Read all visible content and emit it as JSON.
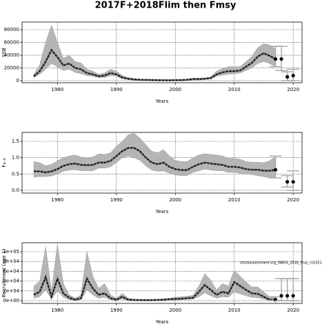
{
  "title": "2017F+2018Flim then Fmsy",
  "chart_data": [
    {
      "type": "line",
      "ylabel": "SSB",
      "xlabel": "Years",
      "x": [
        1976,
        1977,
        1978,
        1979,
        1980,
        1981,
        1982,
        1983,
        1984,
        1985,
        1986,
        1987,
        1988,
        1989,
        1990,
        1991,
        1992,
        1993,
        1994,
        1995,
        1996,
        1997,
        1998,
        1999,
        2000,
        2001,
        2002,
        2003,
        2004,
        2005,
        2006,
        2007,
        2008,
        2009,
        2010,
        2011,
        2012,
        2013,
        2014,
        2015,
        2016,
        2017
      ],
      "series": [
        {
          "color": "#000000",
          "values": [
            7000,
            15000,
            30000,
            48000,
            37000,
            24000,
            27000,
            20000,
            18000,
            12000,
            10000,
            7000,
            8000,
            12000,
            10000,
            5000,
            3000,
            2000,
            1500,
            1200,
            1000,
            800,
            700,
            700,
            800,
            900,
            1500,
            2500,
            2500,
            3000,
            4000,
            10000,
            13000,
            15000,
            15000,
            16000,
            22000,
            28000,
            38000,
            43000,
            39000,
            34000
          ],
          "upper": [
            10000,
            25000,
            60000,
            87000,
            60000,
            35000,
            40000,
            30000,
            28000,
            18000,
            15000,
            10000,
            12000,
            18000,
            15000,
            8000,
            5000,
            3500,
            2500,
            2000,
            1800,
            1500,
            1300,
            1300,
            1400,
            1600,
            2500,
            4000,
            4000,
            4500,
            6000,
            15000,
            19000,
            22000,
            22000,
            22000,
            30000,
            38000,
            52000,
            58000,
            56000,
            50000
          ],
          "lower": [
            5000,
            10000,
            18000,
            27000,
            22000,
            16000,
            18000,
            13000,
            11000,
            8000,
            7000,
            5000,
            5000,
            8000,
            7000,
            3000,
            1800,
            1200,
            900,
            700,
            600,
            500,
            400,
            400,
            500,
            600,
            1000,
            1500,
            1500,
            2000,
            2500,
            7000,
            9000,
            10000,
            11000,
            12000,
            16000,
            20000,
            27000,
            30000,
            27000,
            22000
          ]
        }
      ],
      "forecast": {
        "x": [
          2017,
          2018,
          2019,
          2020
        ],
        "values": [
          34000,
          34000,
          6000,
          8000
        ],
        "lower": [
          22000,
          16000,
          0,
          0
        ],
        "upper": [
          54000,
          54000,
          14000,
          18000
        ]
      },
      "xlim": [
        1974,
        2021.5
      ],
      "xticks": [
        1980,
        1990,
        2000,
        2010,
        2020
      ],
      "ylim": [
        -3200,
        91900
      ],
      "yticks": [
        0,
        20000,
        40000,
        60000,
        80000
      ],
      "grid": true
    },
    {
      "type": "line",
      "ylabel": "F₄₋₈",
      "xlabel": "Years",
      "x": [
        1976,
        1977,
        1978,
        1979,
        1980,
        1981,
        1982,
        1983,
        1984,
        1985,
        1986,
        1987,
        1988,
        1989,
        1990,
        1991,
        1992,
        1993,
        1994,
        1995,
        1996,
        1997,
        1998,
        1999,
        2000,
        2001,
        2002,
        2003,
        2004,
        2005,
        2006,
        2007,
        2008,
        2009,
        2010,
        2011,
        2012,
        2013,
        2014,
        2015,
        2016,
        2017
      ],
      "series": [
        {
          "color": "#000000",
          "values": [
            0.58,
            0.58,
            0.55,
            0.58,
            0.65,
            0.75,
            0.8,
            0.82,
            0.78,
            0.77,
            0.78,
            0.85,
            0.85,
            0.9,
            1.05,
            1.2,
            1.3,
            1.3,
            1.2,
            1.0,
            0.85,
            0.8,
            0.85,
            0.72,
            0.65,
            0.62,
            0.62,
            0.72,
            0.8,
            0.85,
            0.82,
            0.8,
            0.78,
            0.72,
            0.72,
            0.7,
            0.65,
            0.63,
            0.63,
            0.6,
            0.6,
            0.63
          ],
          "upper": [
            0.88,
            0.85,
            0.75,
            0.8,
            0.9,
            1.0,
            1.05,
            1.08,
            1.02,
            1.0,
            1.02,
            1.12,
            1.1,
            1.15,
            1.35,
            1.5,
            1.7,
            1.75,
            1.6,
            1.4,
            1.2,
            1.15,
            1.25,
            1.05,
            0.92,
            0.88,
            0.88,
            1.0,
            1.08,
            1.12,
            1.1,
            1.08,
            1.05,
            0.98,
            0.98,
            0.95,
            0.88,
            0.86,
            0.86,
            0.85,
            0.9,
            1.05
          ],
          "lower": [
            0.4,
            0.42,
            0.42,
            0.44,
            0.5,
            0.58,
            0.62,
            0.63,
            0.6,
            0.6,
            0.6,
            0.68,
            0.68,
            0.72,
            0.85,
            1.0,
            1.05,
            1.0,
            0.92,
            0.75,
            0.62,
            0.58,
            0.6,
            0.52,
            0.47,
            0.45,
            0.45,
            0.55,
            0.6,
            0.65,
            0.62,
            0.6,
            0.6,
            0.55,
            0.55,
            0.52,
            0.5,
            0.48,
            0.45,
            0.42,
            0.38,
            0.38
          ]
        }
      ],
      "forecast": {
        "x": [
          2017,
          2019,
          2020
        ],
        "values": [
          0.63,
          0.26,
          0.26
        ],
        "lower": [
          0.38,
          0.1,
          0.0
        ],
        "upper": [
          1.05,
          0.45,
          0.6
        ]
      },
      "xlim": [
        1974,
        2021.5
      ],
      "xticks": [
        1980,
        1990,
        2000,
        2010,
        2020
      ],
      "ylim": [
        -0.085,
        1.775
      ],
      "yticks": [
        {
          "value": 0,
          "label": "0.0"
        },
        0.5,
        {
          "value": 1,
          "label": "1.0"
        },
        1.5
      ],
      "grid": true
    },
    {
      "type": "line",
      "ylabel": "Recruitment (age 1)",
      "xlabel": "Years",
      "annotation": "stockassessment.org_WBSS_2018_final_r10351",
      "x": [
        1976,
        1977,
        1978,
        1979,
        1980,
        1981,
        1982,
        1983,
        1984,
        1985,
        1986,
        1987,
        1988,
        1989,
        1990,
        1991,
        1992,
        1993,
        1994,
        1995,
        1996,
        1997,
        1998,
        1999,
        2000,
        2001,
        2002,
        2003,
        2004,
        2005,
        2006,
        2007,
        2008,
        2009,
        2010,
        2011,
        2012,
        2013,
        2014,
        2015,
        2016,
        2017
      ],
      "series": [
        {
          "color": "#000000",
          "values": [
            12000,
            18000,
            48000,
            8000,
            45000,
            15000,
            6000,
            2000,
            5000,
            45000,
            25000,
            12000,
            15000,
            5000,
            2000,
            8000,
            2000,
            1500,
            1200,
            1000,
            1200,
            1500,
            2000,
            3000,
            3500,
            4000,
            5000,
            6000,
            18000,
            32000,
            22000,
            12000,
            18000,
            15000,
            38000,
            30000,
            22000,
            15000,
            14000,
            8000,
            2000,
            2000
          ],
          "upper": [
            30000,
            40000,
            110000,
            20000,
            115000,
            35000,
            12000,
            5000,
            12000,
            100000,
            50000,
            25000,
            35000,
            12000,
            5000,
            15000,
            5000,
            3000,
            2500,
            2000,
            2500,
            3000,
            4000,
            5000,
            7000,
            8000,
            9000,
            11000,
            30000,
            55000,
            42000,
            22000,
            35000,
            30000,
            62000,
            50000,
            38000,
            28000,
            28000,
            18000,
            8000,
            8000
          ],
          "lower": [
            5000,
            8000,
            22000,
            3000,
            20000,
            7000,
            2000,
            500,
            2000,
            22000,
            12000,
            5000,
            7000,
            2000,
            700,
            3000,
            700,
            500,
            400,
            300,
            400,
            500,
            700,
            1200,
            1500,
            1800,
            2500,
            3000,
            8000,
            16000,
            10000,
            5000,
            8000,
            7000,
            18000,
            14000,
            10000,
            7000,
            6000,
            3000,
            500,
            500
          ]
        }
      ],
      "forecast": {
        "x": [
          2017,
          2018,
          2019,
          2020
        ],
        "values": [
          2000,
          10000,
          10000,
          10000
        ],
        "lower": [
          500,
          0,
          0,
          0
        ],
        "upper": [
          8000,
          45000,
          45000,
          45000
        ]
      },
      "xlim": [
        1974,
        2021.5
      ],
      "xticks": [
        1980,
        1990,
        2000,
        2010,
        2020
      ],
      "ylim": [
        -5600,
        118300
      ],
      "yticks": [
        {
          "value": 0,
          "label": "0e+00"
        },
        {
          "value": 20000,
          "label": "2e+04"
        },
        {
          "value": 40000,
          "label": "4e+04"
        },
        {
          "value": 60000,
          "label": "6e+04"
        },
        {
          "value": 80000,
          "label": "8e+04"
        },
        {
          "value": 100000,
          "label": "1e+05"
        }
      ],
      "grid": true
    }
  ]
}
